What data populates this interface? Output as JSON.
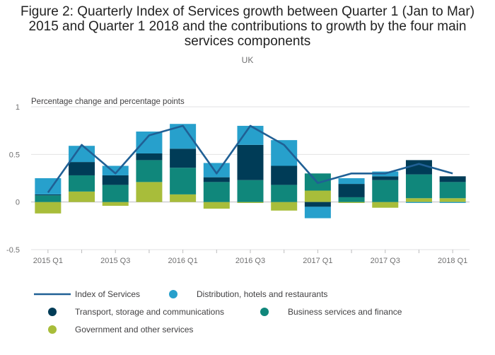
{
  "title": "Figure 2: Quarterly Index of Services growth between Quarter 1 (Jan to Mar) 2015 and Quarter 1 2018 and the contributions to growth by the four main services components",
  "subtitle": "UK",
  "chart_data": {
    "type": "bar",
    "stacked": true,
    "ylabel": "Percentage change and percentage points",
    "ylim": [
      -0.5,
      1
    ],
    "yticks": [
      1,
      0.5,
      0,
      -0.5
    ],
    "ytick_labels": [
      "1",
      "0.5",
      "0",
      "-0.5"
    ],
    "categories": [
      "2015 Q1",
      "2015 Q2",
      "2015 Q3",
      "2015 Q4",
      "2016 Q1",
      "2016 Q2",
      "2016 Q3",
      "2016 Q4",
      "2017 Q1",
      "2017 Q2",
      "2017 Q3",
      "2017 Q4",
      "2018 Q1"
    ],
    "xtick_labels": [
      "2015 Q1",
      "",
      "2015 Q3",
      "",
      "2016 Q1",
      "",
      "2016 Q3",
      "",
      "2017 Q1",
      "",
      "2017 Q3",
      "",
      "2018 Q1"
    ],
    "grid": true,
    "legend_position": "bottom",
    "series": [
      {
        "name": "Government and other services",
        "type": "bar",
        "color": "#a8bd3a",
        "values": [
          -0.12,
          0.11,
          -0.04,
          0.21,
          0.08,
          -0.07,
          -0.01,
          -0.09,
          0.12,
          -0.01,
          -0.06,
          0.04,
          0.04
        ]
      },
      {
        "name": "Business services and finance",
        "type": "bar",
        "color": "#10877b",
        "values": [
          0.07,
          0.17,
          0.18,
          0.23,
          0.28,
          0.21,
          0.23,
          0.18,
          0.18,
          0.05,
          0.23,
          0.25,
          0.17
        ]
      },
      {
        "name": "Transport, storage and communications",
        "type": "bar",
        "color": "#003c57",
        "values": [
          0.01,
          0.14,
          0.1,
          0.07,
          0.2,
          0.05,
          0.37,
          0.2,
          -0.05,
          0.14,
          0.04,
          0.15,
          0.06
        ]
      },
      {
        "name": "Distribution, hotels and restaurants",
        "type": "bar",
        "color": "#27a0cc",
        "values": [
          0.17,
          0.17,
          0.1,
          0.23,
          0.26,
          0.15,
          0.2,
          0.27,
          -0.12,
          0.06,
          0.05,
          -0.01,
          -0.01
        ]
      },
      {
        "name": "Index of Services",
        "type": "line",
        "color": "#206095",
        "values": [
          0.1,
          0.6,
          0.3,
          0.7,
          0.8,
          0.3,
          0.8,
          0.6,
          0.2,
          0.3,
          0.3,
          0.4,
          0.3
        ]
      }
    ],
    "legend_order": [
      "Index of Services",
      "Distribution, hotels and restaurants",
      "Transport, storage and communications",
      "Business services and finance",
      "Government and other services"
    ]
  }
}
